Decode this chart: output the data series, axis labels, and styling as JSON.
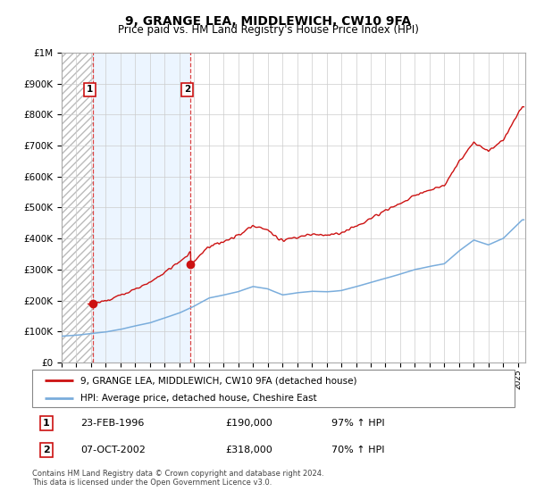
{
  "title": "9, GRANGE LEA, MIDDLEWICH, CW10 9FA",
  "subtitle": "Price paid vs. HM Land Registry's House Price Index (HPI)",
  "sale1_year": 1996.15,
  "sale1_price": 190000,
  "sale2_year": 2002.77,
  "sale2_price": 318000,
  "legend_line1": "9, GRANGE LEA, MIDDLEWICH, CW10 9FA (detached house)",
  "legend_line2": "HPI: Average price, detached house, Cheshire East",
  "table_row1": [
    "1",
    "23-FEB-1996",
    "£190,000",
    "97% ↑ HPI"
  ],
  "table_row2": [
    "2",
    "07-OCT-2002",
    "£318,000",
    "70% ↑ HPI"
  ],
  "footer1": "Contains HM Land Registry data © Crown copyright and database right 2024.",
  "footer2": "This data is licensed under the Open Government Licence v3.0.",
  "hpi_color": "#7aaddc",
  "price_color": "#cc1111",
  "vline_color": "#dd4444",
  "grid_color": "#cccccc",
  "ylim_max": 1000000,
  "xlim_start": 1994.0,
  "xlim_end": 2025.5
}
